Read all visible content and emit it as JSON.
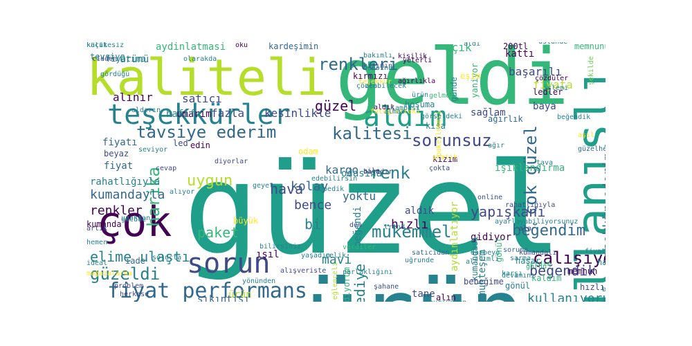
{
  "palette": {
    "dark_purple": "#440154",
    "indigo": "#3e4a89",
    "blue": "#31688e",
    "teal": "#26828e",
    "green": "#1f9e89",
    "emerald": "#35b779",
    "lime": "#6ece58",
    "yellow_green": "#b5de2b",
    "yellow": "#fde725"
  },
  "words": [
    {
      "text": "güzel",
      "color": "green",
      "vertical": false
    },
    {
      "text": "ürün",
      "color": "teal",
      "vertical": false
    },
    {
      "text": "geldi",
      "color": "emerald",
      "vertical": false
    },
    {
      "text": "kaliteli",
      "color": "yellow_green",
      "vertical": false
    },
    {
      "text": "çok",
      "color": "dark_purple",
      "vertical": false
    },
    {
      "text": "kullanışlı",
      "color": "green",
      "vertical": true
    },
    {
      "text": "teşekkürler",
      "color": "teal",
      "vertical": false
    },
    {
      "text": "aldım",
      "color": "green",
      "vertical": false
    },
    {
      "text": "sorun",
      "color": "indigo",
      "vertical": false
    },
    {
      "text": "fiyat performans",
      "color": "blue",
      "vertical": false
    },
    {
      "text": "tavsiye ederim",
      "color": "blue",
      "vertical": false
    },
    {
      "text": "kalitesi",
      "color": "blue",
      "vertical": false
    },
    {
      "text": "sorunsuz",
      "color": "indigo",
      "vertical": false
    },
    {
      "text": "renkleri",
      "color": "blue",
      "vertical": false
    },
    {
      "text": "teşekkür ederim",
      "color": "blue",
      "vertical": true
    },
    {
      "text": "cok güzel",
      "color": "blue",
      "vertical": true
    },
    {
      "text": "beğendim",
      "color": "blue",
      "vertical": false
    },
    {
      "text": "çalışıyor",
      "color": "dark_purple",
      "vertical": false
    },
    {
      "text": "harika",
      "color": "emerald",
      "vertical": true
    },
    {
      "text": "güzeldi",
      "color": "teal",
      "vertical": false
    },
    {
      "text": "mükemmel",
      "color": "teal",
      "vertical": false
    },
    {
      "text": "elime ulaştı",
      "color": "teal",
      "vertical": false
    },
    {
      "text": "beğendik",
      "color": "indigo",
      "vertical": false
    },
    {
      "text": "kullanıyorum",
      "color": "teal",
      "vertical": false
    },
    {
      "text": "paket",
      "color": "emerald",
      "vertical": false
    },
    {
      "text": "renk",
      "color": "teal",
      "vertical": false
    },
    {
      "text": "hızlı",
      "color": "dark_purple",
      "vertical": false
    },
    {
      "text": "uygun",
      "color": "yellow_green",
      "vertical": false
    },
    {
      "text": "yapışkanı",
      "color": "indigo",
      "vertical": false
    },
    {
      "text": "kumandayla",
      "color": "blue",
      "vertical": false
    },
    {
      "text": "renkler",
      "color": "dark_purple",
      "vertical": false
    },
    {
      "text": "ışıl",
      "color": "dark_purple",
      "vertical": false
    },
    {
      "text": "hediye",
      "color": "teal",
      "vertical": true
    },
    {
      "text": "mavi",
      "color": "teal",
      "vertical": false
    },
    {
      "text": "kolay",
      "color": "blue",
      "vertical": false
    },
    {
      "text": "hava",
      "color": "indigo",
      "vertical": false
    },
    {
      "text": "bence",
      "color": "indigo",
      "vertical": false
    },
    {
      "text": "bi",
      "color": "teal",
      "vertical": false
    },
    {
      "text": "yoktu",
      "color": "blue",
      "vertical": false
    },
    {
      "text": "aldık",
      "color": "indigo",
      "vertical": false
    },
    {
      "text": "odasına",
      "color": "teal",
      "vertical": false
    },
    {
      "text": "kargo",
      "color": "blue",
      "vertical": false
    },
    {
      "text": "kızım",
      "color": "dark_purple",
      "vertical": false
    },
    {
      "text": "güzel",
      "color": "dark_purple",
      "vertical": false
    },
    {
      "text": "kesinlikle",
      "color": "indigo",
      "vertical": false
    },
    {
      "text": "fazla",
      "color": "indigo",
      "vertical": false
    },
    {
      "text": "umarım",
      "color": "dark_purple",
      "vertical": false
    },
    {
      "text": "hafif",
      "color": "teal",
      "vertical": false
    },
    {
      "text": "alınır",
      "color": "dark_purple",
      "vertical": false
    },
    {
      "text": "led",
      "color": "indigo",
      "vertical": false
    },
    {
      "text": "satıcı",
      "color": "indigo",
      "vertical": false
    },
    {
      "text": "kardeşimin",
      "color": "blue",
      "vertical": false
    },
    {
      "text": "aydinlatmasi",
      "color": "emerald",
      "vertical": false
    },
    {
      "text": "ürünü",
      "color": "teal",
      "vertical": false
    },
    {
      "text": "fiyatına",
      "color": "teal",
      "vertical": false
    },
    {
      "text": "kırmızı",
      "color": "dark_purple",
      "vertical": false
    },
    {
      "text": "açık",
      "color": "emerald",
      "vertical": false
    },
    {
      "text": "kattı",
      "color": "dark_purple",
      "vertical": false
    },
    {
      "text": "memnunum",
      "color": "emerald",
      "vertical": false
    },
    {
      "text": "başarılı",
      "color": "indigo",
      "vertical": false
    },
    {
      "text": "fiyata",
      "color": "yellow_green",
      "vertical": false
    },
    {
      "text": "ledler",
      "color": "dark_purple",
      "vertical": false
    },
    {
      "text": "baya",
      "color": "indigo",
      "vertical": false
    },
    {
      "text": "sağlam",
      "color": "indigo",
      "vertical": false
    },
    {
      "text": "ağırlık",
      "color": "blue",
      "vertical": false
    },
    {
      "text": "kısa",
      "color": "teal",
      "vertical": false
    },
    {
      "text": "günde",
      "color": "teal",
      "vertical": true
    },
    {
      "text": "yaniyor",
      "color": "emerald",
      "vertical": true
    },
    {
      "text": "şekilde",
      "color": "lime",
      "vertical": true
    },
    {
      "text": "ışıklandırma",
      "color": "emerald",
      "vertical": false
    },
    {
      "text": "aydınlatıyor",
      "color": "yellow_green",
      "vertical": true
    },
    {
      "text": "beyaz",
      "color": "indigo",
      "vertical": false
    },
    {
      "text": "fiyatı",
      "color": "blue",
      "vertical": false
    },
    {
      "text": "fiyat",
      "color": "blue",
      "vertical": false
    },
    {
      "text": "rahatlığıyla",
      "color": "teal",
      "vertical": false
    },
    {
      "text": "kumanda",
      "color": "dark_purple",
      "vertical": false
    },
    {
      "text": "edin",
      "color": "dark_purple",
      "vertical": false
    },
    {
      "text": "odam",
      "color": "yellow",
      "vertical": false
    },
    {
      "text": "büyük",
      "color": "yellow",
      "vertical": false
    },
    {
      "text": "gidiyor",
      "color": "dark_purple",
      "vertical": false
    },
    {
      "text": "beğendi",
      "color": "teal",
      "vertical": true
    },
    {
      "text": "ediyorum",
      "color": "emerald",
      "vertical": true
    },
    {
      "text": "eğlenceli",
      "color": "yellow_green",
      "vertical": true
    },
    {
      "text": "muhteşem",
      "color": "teal",
      "vertical": true
    },
    {
      "text": "kumandası",
      "color": "teal",
      "vertical": true
    },
    {
      "text": "ürün",
      "color": "yellow_green",
      "vertical": false
    },
    {
      "text": "sıkıntısı",
      "color": "blue",
      "vertical": false
    },
    {
      "text": "alın",
      "color": "dark_purple",
      "vertical": false
    },
    {
      "text": "tane",
      "color": "indigo",
      "vertical": false
    },
    {
      "text": "memnun",
      "color": "dark_purple",
      "vertical": false
    },
    {
      "text": "hızlıydı",
      "color": "indigo",
      "vertical": false
    },
    {
      "text": "kaldım",
      "color": "emerald",
      "vertical": false
    },
    {
      "text": "gönül",
      "color": "emerald",
      "vertical": true
    },
    {
      "text": "diyorlar",
      "color": "indigo",
      "vertical": false
    },
    {
      "text": "200tl",
      "color": "dark_purple",
      "vertical": false
    },
    {
      "text": "oku",
      "color": "dark_purple",
      "vertical": false
    },
    {
      "text": "yeterli",
      "color": "dark_purple",
      "vertical": false
    },
    {
      "text": "çözdüler",
      "color": "dark_purple",
      "vertical": false
    },
    {
      "text": "olarakda",
      "color": "teal",
      "vertical": false
    },
    {
      "text": "sipariş",
      "color": "teal",
      "vertical": false
    },
    {
      "text": "ışıktan",
      "color": "blue",
      "vertical": false
    },
    {
      "text": "dışarıya",
      "color": "teal",
      "vertical": false
    },
    {
      "text": "çokta",
      "color": "indigo",
      "vertical": false
    },
    {
      "text": "aile",
      "color": "indigo",
      "vertical": false
    },
    {
      "text": "tava",
      "color": "teal",
      "vertical": false
    },
    {
      "text": "hayet",
      "color": "teal",
      "vertical": false
    },
    {
      "text": "verdim",
      "color": "emerald",
      "vertical": false
    },
    {
      "text": "şahane",
      "color": "indigo",
      "vertical": false
    },
    {
      "text": "problem",
      "color": "indigo",
      "vertical": false
    },
    {
      "text": "herkese",
      "color": "indigo",
      "vertical": false
    },
    {
      "text": "verdiler",
      "color": "emerald",
      "vertical": false
    },
    {
      "text": "yaşadım",
      "color": "teal",
      "vertical": false
    },
    {
      "text": "cevap",
      "color": "indigo",
      "vertical": false
    },
    {
      "text": "tevsiye",
      "color": "teal",
      "vertical": false
    },
    {
      "text": "bebeğime",
      "color": "indigo",
      "vertical": false
    },
    {
      "text": "artık",
      "color": "indigo",
      "vertical": false
    },
    {
      "text": "hemen",
      "color": "teal",
      "vertical": false
    },
    {
      "text": "ideal",
      "color": "teal",
      "vertical": false
    },
    {
      "text": "iade",
      "color": "blue",
      "vertical": false
    },
    {
      "text": "eşim",
      "color": "yellow",
      "vertical": false
    },
    {
      "text": "den",
      "color": "indigo",
      "vertical": false
    },
    {
      "text": "trend",
      "color": "teal",
      "vertical": false
    },
    {
      "text": "fiyatina",
      "color": "teal",
      "vertical": false
    },
    {
      "text": "gördü",
      "color": "emerald",
      "vertical": false
    },
    {
      "text": "ala",
      "color": "indigo",
      "vertical": false
    },
    {
      "text": "soruma",
      "color": "blue",
      "vertical": false
    },
    {
      "text": "karşı",
      "color": "teal",
      "vertical": false
    },
    {
      "text": "sarma",
      "color": "teal",
      "vertical": false
    },
    {
      "text": "hasar",
      "color": "teal",
      "vertical": false
    },
    {
      "text": "bakır",
      "color": "teal",
      "vertical": false
    },
    {
      "text": "çelik",
      "color": "teal",
      "vertical": false
    },
    {
      "text": "devamını",
      "color": "teal",
      "vertical": false
    },
    {
      "text": "işimi",
      "color": "teal",
      "vertical": false
    },
    {
      "text": "gönül",
      "color": "teal",
      "vertical": false
    },
    {
      "text": "rahatlığıyla",
      "color": "indigo",
      "vertical": false
    },
    {
      "text": "güzelherkese",
      "color": "blue",
      "vertical": false
    },
    {
      "text": "paketlemesi",
      "color": "yellow",
      "vertical": true
    },
    {
      "text": "fotoğraftaki",
      "color": "yellow",
      "vertical": false
    },
    {
      "text": "aldık",
      "color": "dark_purple",
      "vertical": false
    },
    {
      "text": "hoşuma",
      "color": "teal",
      "vertical": false
    },
    {
      "text": "beğendik",
      "color": "teal",
      "vertical": false
    },
    {
      "text": "gelmedi",
      "color": "emerald",
      "vertical": false
    },
    {
      "text": "aldırın",
      "color": "teal",
      "vertical": false
    },
    {
      "text": "seviyor",
      "color": "teal",
      "vertical": false
    },
    {
      "text": "kişilik",
      "color": "dark_purple",
      "vertical": false
    },
    {
      "text": "cidden",
      "color": "indigo",
      "vertical": false
    },
    {
      "text": "gücüde",
      "color": "teal",
      "vertical": false
    },
    {
      "text": "uzaktan",
      "color": "teal",
      "vertical": false
    },
    {
      "text": "bayadır",
      "color": "indigo",
      "vertical": false
    },
    {
      "text": "pratik",
      "color": "yellow",
      "vertical": false
    },
    {
      "text": "boyutta",
      "color": "yellow",
      "vertical": false
    },
    {
      "text": "üstünde",
      "color": "teal",
      "vertical": false
    },
    {
      "text": "kızımın",
      "color": "indigo",
      "vertical": false
    },
    {
      "text": "ürün",
      "color": "teal",
      "vertical": false
    },
    {
      "text": "işlemi",
      "color": "teal",
      "vertical": false
    },
    {
      "text": "aldı",
      "color": "teal",
      "vertical": false
    },
    {
      "text": "al",
      "color": "teal",
      "vertical": false
    },
    {
      "text": "parlaklığını",
      "color": "teal",
      "vertical": false
    },
    {
      "text": "satıcıdan",
      "color": "blue",
      "vertical": false
    },
    {
      "text": "bilirsiniz",
      "color": "teal",
      "vertical": false
    },
    {
      "text": "alışveriste",
      "color": "indigo",
      "vertical": false
    },
    {
      "text": "ayriyeten",
      "color": "teal",
      "vertical": false
    },
    {
      "text": "mağazalarda",
      "color": "yellow",
      "vertical": false
    },
    {
      "text": "yönünden",
      "color": "teal",
      "vertical": false
    },
    {
      "text": "alıyor",
      "color": "teal",
      "vertical": false
    },
    {
      "text": "edebilirsin",
      "color": "teal",
      "vertical": false
    },
    {
      "text": "dopedik",
      "color": "teal",
      "vertical": false
    },
    {
      "text": "ağırlıkla",
      "color": "dark_purple",
      "vertical": false
    },
    {
      "text": "aşıl",
      "color": "yellow",
      "vertical": false
    },
    {
      "text": "bakımlı",
      "color": "teal",
      "vertical": false
    },
    {
      "text": "teşekkür",
      "color": "yellow",
      "vertical": false
    },
    {
      "text": "çözen",
      "color": "teal",
      "vertical": false
    },
    {
      "text": "olabilecek",
      "color": "teal",
      "vertical": false
    },
    {
      "text": "odasina",
      "color": "teal",
      "vertical": false
    },
    {
      "text": "lambası",
      "color": "teal",
      "vertical": false
    },
    {
      "text": "almaz",
      "color": "teal",
      "vertical": false
    },
    {
      "text": "geyet",
      "color": "teal",
      "vertical": false
    },
    {
      "text": "görseldeki",
      "color": "teal",
      "vertical": false
    },
    {
      "text": "ağır",
      "color": "teal",
      "vertical": false
    },
    {
      "text": "ayarlayabiliyorsunuz",
      "color": "teal",
      "vertical": false
    },
    {
      "text": "online",
      "color": "indigo",
      "vertical": false
    },
    {
      "text": "uğrunde",
      "color": "teal",
      "vertical": false
    },
    {
      "text": "solucta",
      "color": "teal",
      "vertical": false
    },
    {
      "text": "gördüğü",
      "color": "teal",
      "vertical": false
    },
    {
      "text": "alımlı",
      "color": "teal",
      "vertical": false
    },
    {
      "text": "darbeye",
      "color": "teal",
      "vertical": false
    },
    {
      "text": "kumandalı",
      "color": "indigo",
      "vertical": false
    },
    {
      "text": "küçük",
      "color": "teal",
      "vertical": false
    },
    {
      "text": "kalitesiz",
      "color": "teal",
      "vertical": false
    }
  ]
}
